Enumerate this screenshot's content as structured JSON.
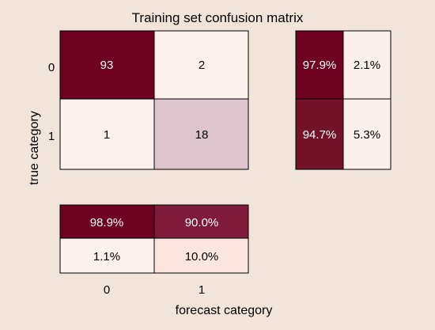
{
  "chart_data": {
    "type": "heatmap",
    "title": "Training set confusion matrix",
    "xlabel": "forecast category",
    "ylabel": "true category",
    "classes": [
      "0",
      "1"
    ],
    "matrix": [
      [
        93,
        2
      ],
      [
        1,
        18
      ]
    ],
    "row_summary": [
      [
        "97.9%",
        "2.1%"
      ],
      [
        "94.7%",
        "5.3%"
      ]
    ],
    "column_summary": [
      [
        "98.9%",
        "90.0%"
      ],
      [
        "1.1%",
        "10.0%"
      ]
    ]
  },
  "colors": {
    "background": "#f1e4db",
    "cell_strong": "#6e0220",
    "cell_strong_alt": "#73132a",
    "cell_medium": "#7e1b3a",
    "cell_diag_light": "#dcc5cc",
    "cell_light": "#fdf1ee",
    "cell_light_alt": "#fbf0ec",
    "cell_peach": "#fae6df",
    "text_dark": "#000000",
    "text_light": "#ffffff"
  }
}
